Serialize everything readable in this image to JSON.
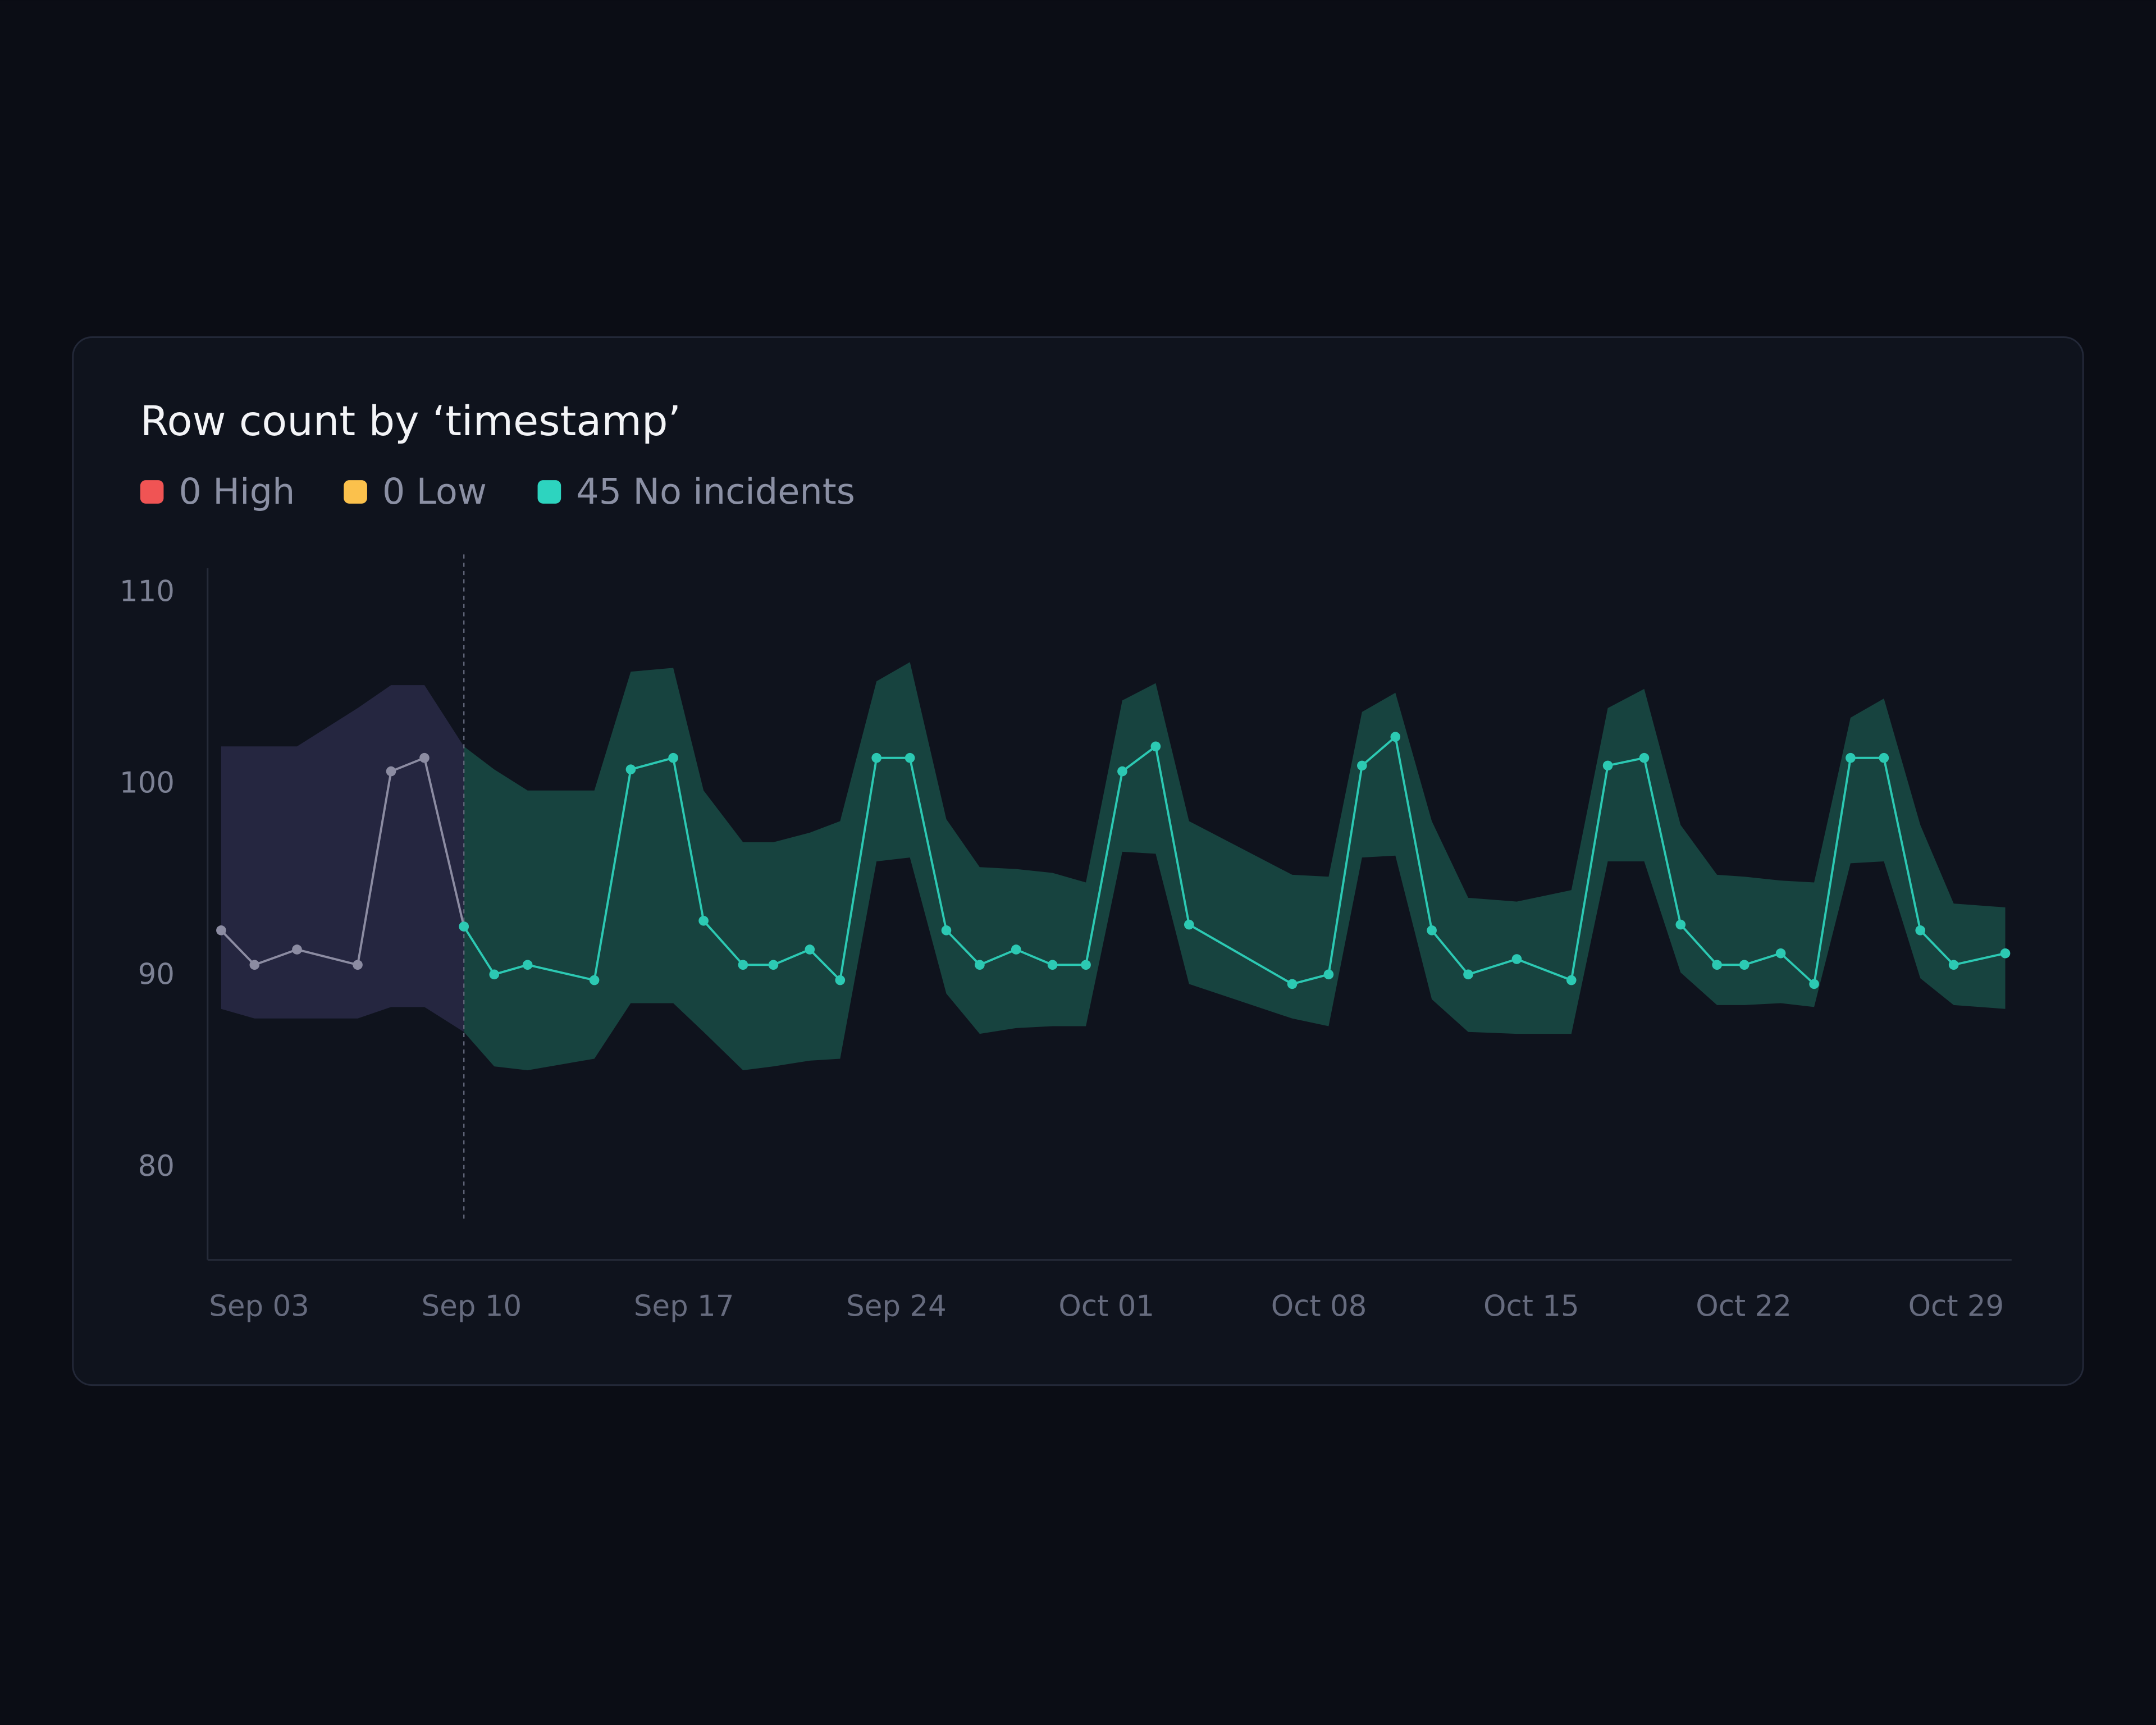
{
  "chart_data": {
    "type": "line",
    "title": "Row count by ‘timestamp’",
    "legend": [
      {
        "label": "0 High",
        "color": "#f05454"
      },
      {
        "label": "0 Low",
        "color": "#fbc14c"
      },
      {
        "label": "45 No incidents",
        "color": "#2dd4bf"
      }
    ],
    "xlim": [
      0,
      59.5
    ],
    "xticks": [
      {
        "value": 0,
        "label": "Sep 03"
      },
      {
        "value": 7,
        "label": "Sep 10"
      },
      {
        "value": 14,
        "label": "Sep 17"
      },
      {
        "value": 21,
        "label": "Sep 24"
      },
      {
        "value": 28,
        "label": "Oct 01"
      },
      {
        "value": 35,
        "label": "Oct 08"
      },
      {
        "value": 42,
        "label": "Oct 15"
      },
      {
        "value": 49,
        "label": "Oct 22"
      },
      {
        "value": 56,
        "label": "Oct 29"
      }
    ],
    "ylim": [
      75.2,
      111.3
    ],
    "yticks": [
      80,
      90,
      100,
      110
    ],
    "series": [
      {
        "color": "#8c8ca2",
        "band_color": "#252640",
        "x": [
          0.4,
          1.5,
          2.9,
          4.9,
          6.0,
          7.1,
          8.4
        ],
        "values": [
          92.4,
          90.6,
          91.4,
          90.6,
          100.7,
          101.4,
          92.6
        ],
        "upper": [
          102.0,
          102.0,
          102.0,
          104.0,
          105.2,
          105.2,
          102.0
        ],
        "lower": [
          88.3,
          87.8,
          87.8,
          87.8,
          88.4,
          88.4,
          87.1
        ]
      },
      {
        "color": "#2cc9b3",
        "band_color": "#17433f",
        "x": [
          8.4,
          9.4,
          10.5,
          12.7,
          13.9,
          15.3,
          16.3,
          17.6,
          18.6,
          19.8,
          20.8,
          22.0,
          23.1,
          24.3,
          25.4,
          26.6,
          27.8,
          28.9,
          30.1,
          31.2,
          32.3,
          35.7,
          36.9,
          38.0,
          39.1,
          40.3,
          41.5,
          43.1,
          44.9,
          46.1,
          47.3,
          48.5,
          49.7,
          50.6,
          51.8,
          52.9,
          54.1,
          55.2,
          56.4,
          57.5,
          59.2
        ],
        "values": [
          92.6,
          90.1,
          90.6,
          89.8,
          100.8,
          101.4,
          92.9,
          90.6,
          90.6,
          91.4,
          89.8,
          101.4,
          101.4,
          92.4,
          90.6,
          91.4,
          90.6,
          90.6,
          100.7,
          102.0,
          92.7,
          89.6,
          90.1,
          101.0,
          102.5,
          92.4,
          90.1,
          90.9,
          89.8,
          101.0,
          101.4,
          92.7,
          90.6,
          90.6,
          91.2,
          89.6,
          101.4,
          101.4,
          92.4,
          90.6,
          91.2
        ],
        "upper": [
          102.0,
          100.8,
          99.7,
          99.7,
          105.9,
          106.1,
          99.7,
          97.0,
          97.0,
          97.5,
          98.1,
          105.4,
          106.4,
          98.2,
          95.7,
          95.6,
          95.4,
          94.9,
          104.4,
          105.3,
          98.1,
          95.3,
          95.2,
          103.8,
          104.8,
          98.1,
          94.1,
          93.9,
          94.5,
          104.0,
          105.0,
          97.9,
          95.3,
          95.2,
          95.0,
          94.9,
          103.5,
          104.5,
          97.9,
          93.8,
          93.6
        ],
        "lower": [
          87.1,
          85.3,
          85.1,
          85.7,
          88.6,
          88.6,
          87.1,
          85.1,
          85.3,
          85.6,
          85.7,
          96.0,
          96.2,
          89.1,
          87.0,
          87.3,
          87.4,
          87.4,
          96.5,
          96.4,
          89.6,
          87.8,
          87.4,
          96.2,
          96.3,
          88.8,
          87.1,
          87.0,
          87.0,
          96.0,
          96.0,
          90.2,
          88.5,
          88.5,
          88.6,
          88.4,
          95.9,
          96.0,
          89.9,
          88.5,
          88.3
        ]
      }
    ]
  }
}
